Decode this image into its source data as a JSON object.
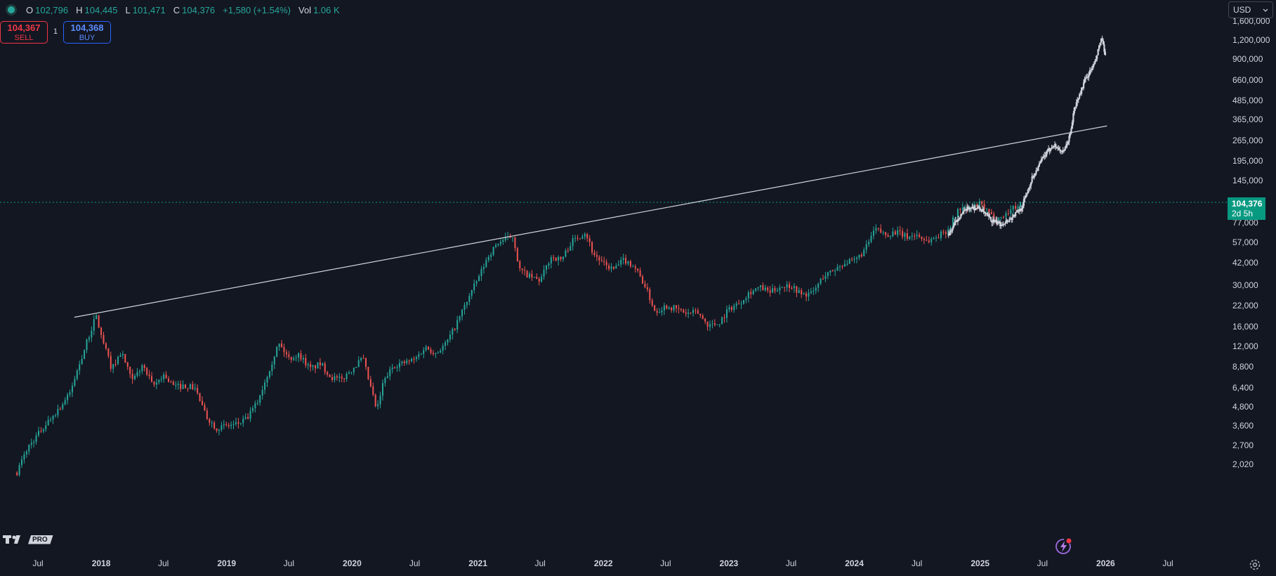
{
  "legend": {
    "open_label": "O",
    "open": "102,796",
    "high_label": "H",
    "high": "104,445",
    "low_label": "L",
    "low": "101,471",
    "close_label": "C",
    "close": "104,376",
    "change": "+1,580 (+1.54%)",
    "vol_label": "Vol",
    "vol": "1.06 K"
  },
  "trade": {
    "sell_price": "104,367",
    "sell_label": "SELL",
    "buy_price": "104,368",
    "buy_label": "BUY",
    "quantity": "1"
  },
  "currency": {
    "label": "USD",
    "arrow_icon": "chevron-down-icon"
  },
  "last_price": {
    "value": "104,376",
    "countdown": "2d 5h"
  },
  "logo": {
    "pro_label": "PRO"
  },
  "colors": {
    "up": "#26a69a",
    "down": "#ef5350",
    "projection": "#d1d4dc",
    "background": "#131722",
    "label_bg": "#089981"
  },
  "chart_data": {
    "type": "candlestick",
    "y_scale": "log",
    "ylim": [
      1750,
      1800000
    ],
    "x_range": [
      "2017-05",
      "2026-10"
    ],
    "price_ticks": [
      1600000,
      1200000,
      900000,
      660000,
      485000,
      365000,
      265000,
      195000,
      145000,
      77000,
      57000,
      42000,
      30000,
      22000,
      16000,
      12000,
      8800,
      6400,
      4800,
      3600,
      2700,
      2020
    ],
    "price_tick_labels": [
      "1,600,000",
      "1,200,000",
      "900,000",
      "660,000",
      "485,000",
      "365,000",
      "265,000",
      "195,000",
      "145,000",
      "77,000",
      "57,000",
      "42,000",
      "30,000",
      "22,000",
      "16,000",
      "12,000",
      "8,800",
      "6,400",
      "4,800",
      "3,600",
      "2,700",
      "2,020"
    ],
    "time_ticks": [
      {
        "label": "Jul",
        "date": "2017-07"
      },
      {
        "label": "2018",
        "date": "2018-01"
      },
      {
        "label": "Jul",
        "date": "2018-07"
      },
      {
        "label": "2019",
        "date": "2019-01"
      },
      {
        "label": "Jul",
        "date": "2019-07"
      },
      {
        "label": "2020",
        "date": "2020-01"
      },
      {
        "label": "Jul",
        "date": "2020-07"
      },
      {
        "label": "2021",
        "date": "2021-01"
      },
      {
        "label": "Jul",
        "date": "2021-07"
      },
      {
        "label": "2022",
        "date": "2022-01"
      },
      {
        "label": "Jul",
        "date": "2022-07"
      },
      {
        "label": "2023",
        "date": "2023-01"
      },
      {
        "label": "Jul",
        "date": "2023-07"
      },
      {
        "label": "2024",
        "date": "2024-01"
      },
      {
        "label": "Jul",
        "date": "2024-07"
      },
      {
        "label": "2025",
        "date": "2025-01"
      },
      {
        "label": "Jul",
        "date": "2025-07"
      },
      {
        "label": "2026",
        "date": "2026-01"
      },
      {
        "label": "Jul",
        "date": "2026-07"
      }
    ],
    "price_path": [
      [
        "2017-05",
        1800
      ],
      [
        "2017-06",
        2600
      ],
      [
        "2017-08",
        3900
      ],
      [
        "2017-09",
        4700
      ],
      [
        "2017-10",
        5800
      ],
      [
        "2017-11",
        9500
      ],
      [
        "2017-12-17",
        19000
      ],
      [
        "2018-01",
        14000
      ],
      [
        "2018-02",
        8500
      ],
      [
        "2018-03",
        11000
      ],
      [
        "2018-04",
        7000
      ],
      [
        "2018-05",
        9000
      ],
      [
        "2018-06",
        6500
      ],
      [
        "2018-07",
        7800
      ],
      [
        "2018-08",
        6500
      ],
      [
        "2018-09",
        6600
      ],
      [
        "2018-10",
        6400
      ],
      [
        "2018-11",
        4200
      ],
      [
        "2018-12",
        3500
      ],
      [
        "2019-01",
        3600
      ],
      [
        "2019-02",
        3700
      ],
      [
        "2019-03",
        4000
      ],
      [
        "2019-04",
        5200
      ],
      [
        "2019-05",
        8000
      ],
      [
        "2019-06",
        12500
      ],
      [
        "2019-07",
        10000
      ],
      [
        "2019-08",
        10500
      ],
      [
        "2019-09",
        8500
      ],
      [
        "2019-10",
        9200
      ],
      [
        "2019-11",
        7500
      ],
      [
        "2019-12",
        7200
      ],
      [
        "2020-01",
        8500
      ],
      [
        "2020-02",
        10000
      ],
      [
        "2020-03-13",
        4500
      ],
      [
        "2020-04",
        7000
      ],
      [
        "2020-05",
        9000
      ],
      [
        "2020-06",
        9300
      ],
      [
        "2020-07",
        9800
      ],
      [
        "2020-08",
        11800
      ],
      [
        "2020-09",
        10800
      ],
      [
        "2020-10",
        12500
      ],
      [
        "2020-11",
        17000
      ],
      [
        "2020-12",
        24000
      ],
      [
        "2021-01",
        33000
      ],
      [
        "2021-02",
        47000
      ],
      [
        "2021-03",
        57000
      ],
      [
        "2021-04-14",
        63000
      ],
      [
        "2021-05",
        38000
      ],
      [
        "2021-06",
        34000
      ],
      [
        "2021-07",
        32000
      ],
      [
        "2021-08",
        46000
      ],
      [
        "2021-09",
        44000
      ],
      [
        "2021-10",
        58000
      ],
      [
        "2021-11-10",
        67000
      ],
      [
        "2021-12",
        49000
      ],
      [
        "2022-01",
        41000
      ],
      [
        "2022-02",
        38000
      ],
      [
        "2022-03",
        44000
      ],
      [
        "2022-04",
        40000
      ],
      [
        "2022-05",
        30000
      ],
      [
        "2022-06",
        20000
      ],
      [
        "2022-07",
        22000
      ],
      [
        "2022-08",
        21000
      ],
      [
        "2022-09",
        19500
      ],
      [
        "2022-10",
        20000
      ],
      [
        "2022-11",
        16500
      ],
      [
        "2022-12",
        16800
      ],
      [
        "2023-01",
        21000
      ],
      [
        "2023-02",
        23000
      ],
      [
        "2023-03",
        27000
      ],
      [
        "2023-04",
        29000
      ],
      [
        "2023-05",
        27000
      ],
      [
        "2023-06",
        29500
      ],
      [
        "2023-07",
        30000
      ],
      [
        "2023-08",
        26000
      ],
      [
        "2023-09",
        26500
      ],
      [
        "2023-10",
        34000
      ],
      [
        "2023-11",
        37500
      ],
      [
        "2023-12",
        42000
      ],
      [
        "2024-01",
        43000
      ],
      [
        "2024-02",
        51000
      ],
      [
        "2024-03",
        70000
      ],
      [
        "2024-04",
        64000
      ],
      [
        "2024-05",
        67000
      ],
      [
        "2024-06",
        62000
      ],
      [
        "2024-07",
        64000
      ],
      [
        "2024-08",
        58000
      ],
      [
        "2024-09",
        63000
      ],
      [
        "2024-10",
        70000
      ],
      [
        "2024-11",
        96000
      ],
      [
        "2024-12",
        94000
      ],
      [
        "2025-01",
        102000
      ],
      [
        "2025-02",
        85000
      ],
      [
        "2025-03",
        82000
      ],
      [
        "2025-04",
        94000
      ],
      [
        "2025-05",
        104000
      ]
    ],
    "projection_path": [
      [
        "2024-10",
        64000
      ],
      [
        "2024-11",
        85000
      ],
      [
        "2024-12",
        97000
      ],
      [
        "2025-01",
        95000
      ],
      [
        "2025-02",
        80000
      ],
      [
        "2025-03",
        75000
      ],
      [
        "2025-04",
        82000
      ],
      [
        "2025-05",
        96000
      ],
      [
        "2025-06",
        150000
      ],
      [
        "2025-07",
        200000
      ],
      [
        "2025-08",
        250000
      ],
      [
        "2025-09",
        220000
      ],
      [
        "2025-09-20",
        290000
      ],
      [
        "2025-10",
        420000
      ],
      [
        "2025-11",
        650000
      ],
      [
        "2025-12",
        850000
      ],
      [
        "2025-12-20",
        1250000
      ],
      [
        "2026-01",
        900000
      ]
    ],
    "trendline": [
      [
        "2017-10-15",
        18500
      ],
      [
        "2026-01-05",
        330000
      ]
    ]
  }
}
